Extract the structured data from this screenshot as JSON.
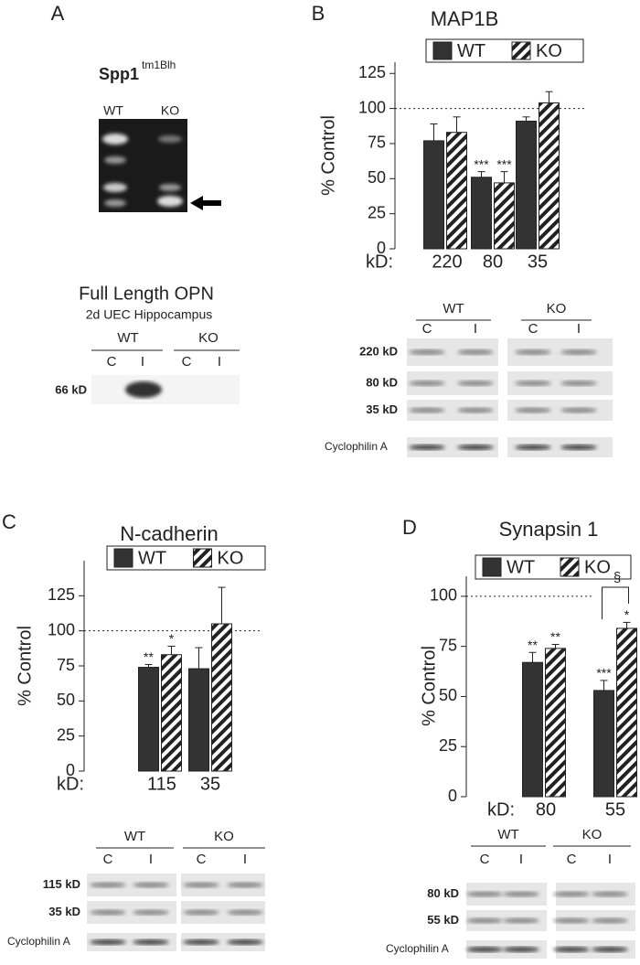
{
  "figure": {
    "panel_letters": [
      "A",
      "B",
      "C",
      "D"
    ],
    "genotyping": {
      "gene": "Spp1",
      "allele": "tm1Blh",
      "lanes": [
        "WT",
        "KO"
      ]
    },
    "opn_blot": {
      "title": "Full Length OPN",
      "subtitle": "2d UEC Hippocampus",
      "groups": [
        "WT",
        "KO"
      ],
      "lanes": [
        "C",
        "I",
        "C",
        "I"
      ],
      "bands": [
        "66 kD"
      ]
    },
    "blots": [
      {
        "groups": [
          "WT",
          "KO"
        ],
        "lanes": [
          "C",
          "I",
          "C",
          "I"
        ],
        "bands": [
          "220 kD",
          "80 kD",
          "35 kD",
          "Cyclophilin A"
        ]
      },
      {
        "groups": [
          "WT",
          "KO"
        ],
        "lanes": [
          "C",
          "I",
          "C",
          "I"
        ],
        "bands": [
          "115 kD",
          "35 kD",
          "Cyclophilin A"
        ]
      },
      {
        "groups": [
          "WT",
          "KO"
        ],
        "lanes": [
          "C",
          "I",
          "C",
          "I"
        ],
        "bands": [
          "80 kD",
          "55 kD",
          "Cyclophilin A"
        ]
      }
    ]
  },
  "chart_data": [
    {
      "type": "bar",
      "title": "MAP1B",
      "y_label": "% Control",
      "x_prefix": "kD:",
      "categories": [
        "220",
        "80",
        "35"
      ],
      "series": [
        {
          "name": "WT",
          "color": "#333333",
          "hatch": false,
          "values": [
            77,
            51,
            91
          ],
          "errors": [
            12,
            4,
            3
          ],
          "annotations": [
            null,
            "***",
            null
          ]
        },
        {
          "name": "KO",
          "color": "#ffffff",
          "hatch": true,
          "values": [
            83,
            47,
            104
          ],
          "errors": [
            11,
            8,
            8
          ],
          "annotations": [
            null,
            "***",
            null
          ]
        }
      ],
      "ylim": [
        0,
        133
      ],
      "yticks": [
        0,
        25,
        50,
        75,
        100,
        125
      ],
      "reference_line": 100
    },
    {
      "type": "bar",
      "title": "N-cadherin",
      "y_label": "% Control",
      "x_prefix": "kD:",
      "categories": [
        "115",
        "35"
      ],
      "series": [
        {
          "name": "WT",
          "color": "#333333",
          "hatch": false,
          "values": [
            74,
            73
          ],
          "errors": [
            2,
            15
          ],
          "annotations": [
            "**",
            null
          ]
        },
        {
          "name": "KO",
          "color": "#ffffff",
          "hatch": true,
          "values": [
            83,
            105
          ],
          "errors": [
            6,
            26
          ],
          "annotations": [
            "*",
            null
          ]
        }
      ],
      "ylim": [
        0,
        150
      ],
      "yticks": [
        0,
        25,
        50,
        75,
        100,
        125
      ],
      "reference_line": 100
    },
    {
      "type": "bar",
      "title": "Synapsin 1",
      "y_label": "% Control",
      "x_prefix": "kD:",
      "categories": [
        "80",
        "55"
      ],
      "series": [
        {
          "name": "WT",
          "color": "#333333",
          "hatch": false,
          "values": [
            67,
            53
          ],
          "errors": [
            5,
            5
          ],
          "annotations": [
            "**",
            "***"
          ]
        },
        {
          "name": "KO",
          "color": "#ffffff",
          "hatch": true,
          "values": [
            74,
            84
          ],
          "errors": [
            2,
            3
          ],
          "annotations": [
            "**",
            "*"
          ]
        }
      ],
      "ylim": [
        0,
        110
      ],
      "yticks": [
        0,
        25,
        50,
        75,
        100
      ],
      "reference_line": 100,
      "bracket_label": "§"
    }
  ]
}
